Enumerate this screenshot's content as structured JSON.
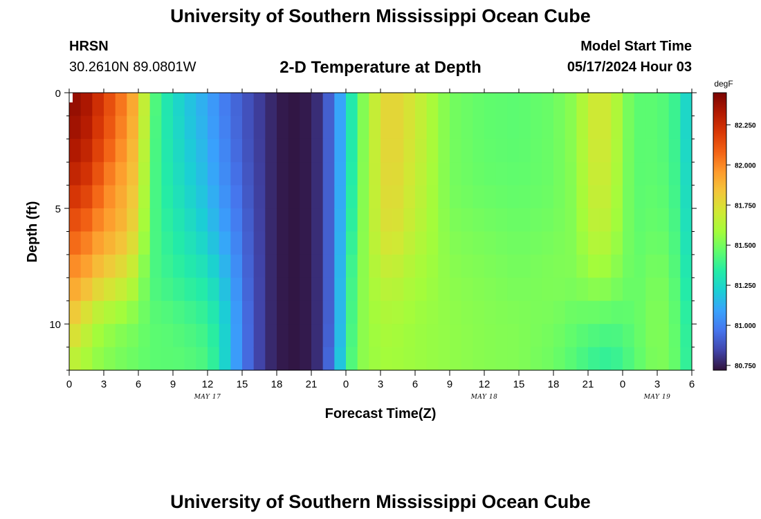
{
  "page": {
    "title": "University of Southern Mississippi Ocean Cube",
    "station": "HRSN",
    "coords": "30.2610N  89.0801W",
    "model_start_label": "Model Start Time",
    "model_start_value": "05/17/2024 Hour 03",
    "footer_title": "University of Southern Mississippi Ocean Cube"
  },
  "chart_data": {
    "type": "heatmap",
    "title": "2-D Temperature at Depth",
    "xlabel": "Forecast Time(Z)",
    "ylabel": "Depth (ft)",
    "x_tick_labels": [
      "0",
      "3",
      "6",
      "9",
      "12",
      "15",
      "18",
      "21",
      "0",
      "3",
      "6",
      "9",
      "12",
      "15",
      "18",
      "21",
      "0",
      "3",
      "6"
    ],
    "x_date_labels": [
      {
        "label": "MAY 17",
        "hour": 12
      },
      {
        "label": "MAY 18",
        "hour": 36
      },
      {
        "label": "MAY 19",
        "hour": 51
      }
    ],
    "x_range_hours": [
      0,
      54
    ],
    "y_range_ft": [
      0,
      12
    ],
    "y_ticks": [
      0,
      5,
      10
    ],
    "y_inverted": true,
    "colorbar": {
      "units": "degF",
      "min": 80.72,
      "max": 82.45,
      "ticks": [
        "82.250",
        "82.000",
        "81.750",
        "81.500",
        "81.250",
        "81.000",
        "80.750"
      ],
      "tick_values": [
        82.25,
        82.0,
        81.75,
        81.5,
        81.25,
        81.0,
        80.75
      ],
      "colormap": [
        "#30123b",
        "#4145ab",
        "#4675ed",
        "#39a2fc",
        "#1bcfd4",
        "#24eca6",
        "#61fc6c",
        "#a4fc3b",
        "#d1e834",
        "#f3c63a",
        "#fe9b2d",
        "#f36315",
        "#d93806",
        "#b11901",
        "#7a0403"
      ]
    },
    "field": {
      "time_hours": [
        0,
        1,
        2,
        3,
        4,
        5,
        6,
        7,
        8,
        10,
        12,
        13,
        14,
        15,
        16,
        17,
        18,
        19,
        20,
        21,
        22,
        23,
        24,
        25,
        26,
        27,
        28,
        30,
        33,
        36,
        39,
        42,
        44,
        45,
        46,
        47,
        48,
        49,
        50,
        51,
        52,
        53,
        54
      ],
      "depths_ft": [
        0,
        2,
        4,
        6,
        8,
        10,
        12
      ],
      "values_degF": [
        [
          82.4,
          82.35,
          82.25,
          82.1,
          81.95,
          81.8,
          81.62
        ],
        [
          82.4,
          82.35,
          82.25,
          82.1,
          81.95,
          81.75,
          81.6
        ],
        [
          82.3,
          82.25,
          82.15,
          82.0,
          81.85,
          81.62,
          81.55
        ],
        [
          82.2,
          82.15,
          82.05,
          81.95,
          81.8,
          81.58,
          81.52
        ],
        [
          82.1,
          82.05,
          81.95,
          81.9,
          81.75,
          81.55,
          81.5
        ],
        [
          82.0,
          81.95,
          81.9,
          81.85,
          81.7,
          81.52,
          81.48
        ],
        [
          81.85,
          81.82,
          81.78,
          81.72,
          81.6,
          81.5,
          81.47
        ],
        [
          81.5,
          81.48,
          81.46,
          81.45,
          81.43,
          81.45,
          81.45
        ],
        [
          81.35,
          81.35,
          81.36,
          81.38,
          81.4,
          81.45,
          81.45
        ],
        [
          81.2,
          81.22,
          81.25,
          81.3,
          81.35,
          81.42,
          81.45
        ],
        [
          81.1,
          81.12,
          81.15,
          81.2,
          81.3,
          81.38,
          81.42
        ],
        [
          81.02,
          81.04,
          81.07,
          81.12,
          81.2,
          81.3,
          81.32
        ],
        [
          80.95,
          80.97,
          81.0,
          81.05,
          81.12,
          81.15,
          81.15
        ],
        [
          80.9,
          80.9,
          80.92,
          80.95,
          80.97,
          81.0,
          81.0
        ],
        [
          80.85,
          80.85,
          80.86,
          80.87,
          80.88,
          80.88,
          80.88
        ],
        [
          80.8,
          80.8,
          80.8,
          80.8,
          80.8,
          80.8,
          80.8
        ],
        [
          80.75,
          80.75,
          80.75,
          80.75,
          80.75,
          80.75,
          80.75
        ],
        [
          80.73,
          80.73,
          80.73,
          80.73,
          80.73,
          80.73,
          80.73
        ],
        [
          80.73,
          80.73,
          80.73,
          80.73,
          80.73,
          80.73,
          80.73
        ],
        [
          80.75,
          80.75,
          80.75,
          80.75,
          80.75,
          80.75,
          80.75
        ],
        [
          80.82,
          80.82,
          80.82,
          80.82,
          80.82,
          80.82,
          80.82
        ],
        [
          81.0,
          81.0,
          81.0,
          81.0,
          81.0,
          81.0,
          81.05
        ],
        [
          81.2,
          81.2,
          81.22,
          81.25,
          81.3,
          81.3,
          81.35
        ],
        [
          81.45,
          81.45,
          81.46,
          81.47,
          81.5,
          81.52,
          81.52
        ],
        [
          81.6,
          81.6,
          81.6,
          81.6,
          81.58,
          81.56,
          81.56
        ],
        [
          81.75,
          81.75,
          81.74,
          81.72,
          81.65,
          81.6,
          81.58
        ],
        [
          81.8,
          81.8,
          81.78,
          81.75,
          81.66,
          81.6,
          81.58
        ],
        [
          81.7,
          81.7,
          81.68,
          81.65,
          81.6,
          81.57,
          81.57
        ],
        [
          81.5,
          81.5,
          81.5,
          81.52,
          81.54,
          81.55,
          81.55
        ],
        [
          81.46,
          81.46,
          81.47,
          81.5,
          81.52,
          81.53,
          81.53
        ],
        [
          81.45,
          81.45,
          81.46,
          81.48,
          81.5,
          81.52,
          81.52
        ],
        [
          81.48,
          81.48,
          81.48,
          81.5,
          81.52,
          81.5,
          81.48
        ],
        [
          81.55,
          81.55,
          81.54,
          81.53,
          81.52,
          81.46,
          81.42
        ],
        [
          81.68,
          81.68,
          81.66,
          81.63,
          81.56,
          81.45,
          81.38
        ],
        [
          81.72,
          81.72,
          81.7,
          81.66,
          81.57,
          81.44,
          81.35
        ],
        [
          81.68,
          81.68,
          81.66,
          81.62,
          81.55,
          81.43,
          81.35
        ],
        [
          81.55,
          81.55,
          81.54,
          81.53,
          81.5,
          81.44,
          81.38
        ],
        [
          81.45,
          81.45,
          81.45,
          81.46,
          81.47,
          81.46,
          81.44
        ],
        [
          81.45,
          81.45,
          81.45,
          81.46,
          81.48,
          81.5,
          81.48
        ],
        [
          81.45,
          81.45,
          81.46,
          81.48,
          81.52,
          81.53,
          81.52
        ],
        [
          81.42,
          81.42,
          81.43,
          81.45,
          81.48,
          81.5,
          81.5
        ],
        [
          81.35,
          81.35,
          81.36,
          81.38,
          81.4,
          81.42,
          81.44
        ],
        [
          81.15,
          81.15,
          81.18,
          81.2,
          81.25,
          81.3,
          81.3
        ]
      ]
    }
  }
}
